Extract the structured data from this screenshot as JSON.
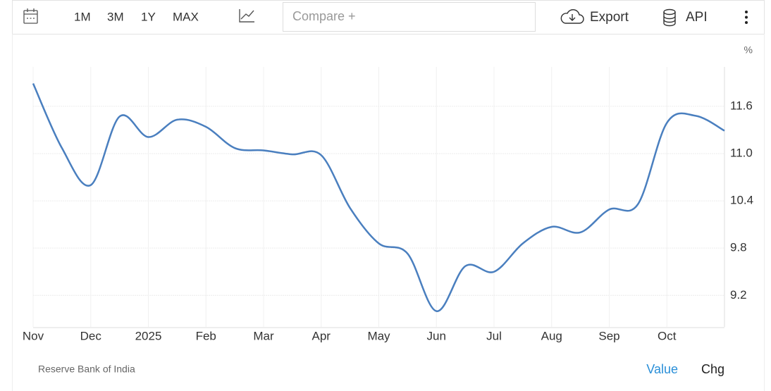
{
  "toolbar": {
    "ranges": [
      "1M",
      "3M",
      "1Y",
      "MAX"
    ],
    "compare": "Compare +",
    "export": "Export",
    "api": "API"
  },
  "tabs": [
    "Value",
    "Chg"
  ],
  "chart_data": {
    "type": "line",
    "unit": "%",
    "source": "Reserve Bank of India",
    "categories": [
      "Nov",
      null,
      "Dec",
      null,
      "2025",
      null,
      "Feb",
      null,
      "Mar",
      null,
      "Apr",
      null,
      "May",
      null,
      "Jun",
      null,
      "Jul",
      null,
      "Aug",
      null,
      "Sep",
      null,
      "Oct",
      null,
      null
    ],
    "series": [
      {
        "name": "Value",
        "color": "#4a7fbf",
        "values": [
          11.89,
          11.07,
          10.6,
          11.47,
          11.21,
          11.43,
          11.34,
          11.07,
          11.04,
          10.99,
          10.98,
          10.31,
          9.86,
          9.73,
          9.0,
          9.57,
          9.5,
          9.86,
          10.07,
          10.0,
          10.29,
          10.36,
          11.39,
          11.48,
          11.29
        ]
      }
    ],
    "ylim": [
      8.8,
      12.1
    ],
    "yticks": [
      9.2,
      9.8,
      10.4,
      {
        "value": 11,
        "label": "11.0"
      },
      11.6
    ],
    "grid": true
  }
}
